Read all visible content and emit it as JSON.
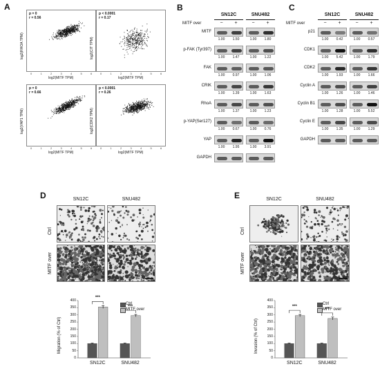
{
  "panel_labels": {
    "a": "A",
    "b": "B",
    "c": "C",
    "d": "D",
    "e": "E"
  },
  "panelA": {
    "plots": [
      {
        "stat1": "p = 0",
        "stat2": "r = 0.56",
        "ylabel": "log2(RHOA TPM)",
        "xlabel": "log2(MITF TPM)",
        "slope": 0.55,
        "spread": 0.9,
        "density": "dense"
      },
      {
        "stat1": "p < 0.0001",
        "stat2": "r = 0.17",
        "ylabel": "log2(CIT TPM)",
        "xlabel": "log2(MITF TPM)",
        "slope": 0.25,
        "spread": 2.2,
        "density": "sparse"
      },
      {
        "stat1": "p = 0",
        "stat2": "r = 0.66",
        "ylabel": "log2(YAP1 TPM)",
        "xlabel": "log2(MITF TPM)",
        "slope": 0.7,
        "spread": 0.8,
        "density": "dense"
      },
      {
        "stat1": "p < 0.0001",
        "stat2": "r = 0.26",
        "ylabel": "log2(CDK2 TPM)",
        "xlabel": "log2(MITF TPM)",
        "slope": 0.35,
        "spread": 1.0,
        "density": "dense"
      }
    ],
    "x_ticks": [
      "0",
      "1",
      "2",
      "3",
      "4",
      "5",
      "6"
    ]
  },
  "panelB": {
    "cells": [
      "SN12C",
      "SNU482"
    ],
    "over_label": "MITF over",
    "signs": [
      "−",
      "+",
      "−",
      "+"
    ],
    "rows": [
      {
        "name": "MITF",
        "q": [
          "1.00",
          "1.50",
          "1.00",
          "1.80"
        ]
      },
      {
        "name": "p-FAK (Tyr397)",
        "q": [
          "1.00",
          "1.47",
          "1.00",
          "1.22"
        ]
      },
      {
        "name": "FAK",
        "q": [
          "1.00",
          "0.97",
          "1.00",
          "1.06"
        ]
      },
      {
        "name": "CRIK",
        "q": [
          "1.00",
          "1.39",
          "1.00",
          "1.63"
        ]
      },
      {
        "name": "RhoA",
        "q": [
          "1.00",
          "1.37",
          "1.00",
          "1.23"
        ]
      },
      {
        "name": "p-YAP(Ser127)",
        "q": [
          "1.00",
          "0.67",
          "1.00",
          "0.76"
        ]
      },
      {
        "name": "YAP",
        "q": [
          "1.00",
          "1.95",
          "1.00",
          "3.91"
        ]
      },
      {
        "name": "GAPDH",
        "q": []
      }
    ]
  },
  "panelC": {
    "cells": [
      "SN12C",
      "SNU482"
    ],
    "over_label": "MITF over",
    "signs": [
      "−",
      "+",
      "−",
      "+"
    ],
    "rows": [
      {
        "name": "p21",
        "q": [
          "1.00",
          "0.42",
          "1.00",
          "0.57"
        ]
      },
      {
        "name": "CDK1",
        "q": [
          "1.00",
          "5.42",
          "1.00",
          "1.79"
        ]
      },
      {
        "name": "CDK2",
        "q": [
          "1.00",
          "1.93",
          "1.00",
          "1.66"
        ]
      },
      {
        "name": "Cyclin A",
        "q": [
          "1.00",
          "1.26",
          "1.00",
          "1.46"
        ]
      },
      {
        "name": "Cyclin B1",
        "q": [
          "1.00",
          "1.28",
          "1.00",
          "5.52"
        ]
      },
      {
        "name": "Cyclin E",
        "q": [
          "1.00",
          "1.35",
          "1.00",
          "1.29"
        ]
      },
      {
        "name": "GAPDH",
        "q": []
      }
    ]
  },
  "panelD": {
    "cols": [
      "SN12C",
      "SNU482"
    ],
    "rows": [
      "Ctrl",
      "MITF over"
    ]
  },
  "panelE": {
    "cols": [
      "SN12C",
      "SNU482"
    ],
    "rows": [
      "Ctrl",
      "MITF over"
    ]
  },
  "chart_data": [
    {
      "type": "bar",
      "categories": [
        "SN12C",
        "SNU482"
      ],
      "series": [
        {
          "name": "Ctrl",
          "values": [
            100,
            100
          ]
        },
        {
          "name": "MITF over",
          "values": [
            355,
            295
          ]
        }
      ],
      "errors": [
        [
          3,
          3
        ],
        [
          10,
          8
        ]
      ],
      "ylabel": "Migration (% of Ctrl)",
      "ylim": [
        0,
        400
      ],
      "yticks": [
        "0",
        "50",
        "100",
        "150",
        "200",
        "250",
        "300",
        "350",
        "400"
      ],
      "significance": [
        "***",
        "***"
      ],
      "colors": [
        "#555555",
        "#bfbfbf"
      ],
      "legend": "top-right"
    },
    {
      "type": "bar",
      "categories": [
        "SN12C",
        "SNU482"
      ],
      "series": [
        {
          "name": "Ctrl",
          "values": [
            100,
            100
          ]
        },
        {
          "name": "MITF over",
          "values": [
            295,
            275
          ]
        }
      ],
      "errors": [
        [
          3,
          3
        ],
        [
          8,
          10
        ]
      ],
      "ylabel": "Invasion (% of Ctrl)",
      "ylim": [
        0,
        400
      ],
      "yticks": [
        "0",
        "50",
        "100",
        "150",
        "200",
        "250",
        "300",
        "350",
        "400"
      ],
      "significance": [
        "***",
        "***"
      ],
      "colors": [
        "#555555",
        "#bfbfbf"
      ],
      "legend": "top-right"
    }
  ]
}
